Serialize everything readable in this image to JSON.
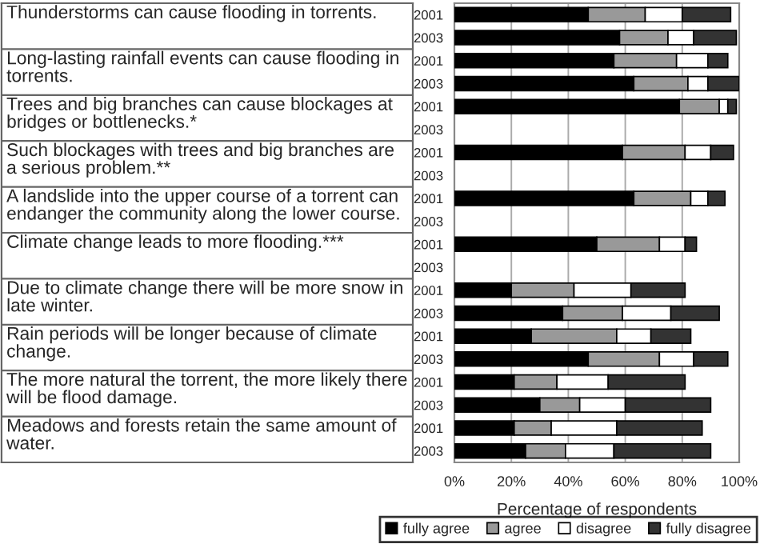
{
  "chart_data": {
    "type": "bar",
    "orientation": "horizontal",
    "stacked": true,
    "xlabel": "Percentage of respondents",
    "categories": [
      "2001",
      "2003",
      "2001",
      "2003",
      "2001",
      "2003",
      "2001",
      "2003",
      "2001",
      "2003",
      "2001",
      "2003",
      "2001",
      "2003",
      "2001",
      "2003",
      "2001",
      "2003",
      "2001",
      "2003"
    ],
    "series": [
      {
        "name": "fully agree",
        "color": "#000000",
        "values": [
          47,
          58,
          56,
          63,
          79,
          null,
          59,
          null,
          63,
          null,
          50,
          null,
          20,
          38,
          27,
          47,
          21,
          30,
          21,
          25
        ]
      },
      {
        "name": "agree",
        "color": "#999999",
        "values": [
          20,
          17,
          22,
          19,
          14,
          null,
          22,
          null,
          20,
          null,
          22,
          null,
          22,
          21,
          30,
          25,
          15,
          14,
          13,
          14
        ]
      },
      {
        "name": "disagree",
        "color": "#ffffff",
        "values": [
          13,
          9,
          11,
          7,
          3,
          null,
          9,
          null,
          6,
          null,
          9,
          null,
          20,
          17,
          12,
          12,
          18,
          16,
          23,
          17
        ]
      },
      {
        "name": "fully disagree",
        "color": "#333333",
        "values": [
          17,
          15,
          7,
          11,
          3,
          null,
          8,
          null,
          6,
          null,
          4,
          null,
          19,
          17,
          14,
          12,
          27,
          30,
          30,
          34
        ]
      }
    ],
    "xlim": [
      0,
      100
    ],
    "xticks": [
      {
        "value": 0,
        "label": "0%"
      },
      {
        "value": 20,
        "label": "20%"
      },
      {
        "value": 40,
        "label": "40%"
      },
      {
        "value": 60,
        "label": "60%"
      },
      {
        "value": 80,
        "label": "80%"
      },
      {
        "value": 100,
        "label": "100%"
      }
    ],
    "grid": "x",
    "legend": "bottom",
    "annotations": [
      "Thunderstorms can cause flooding in torrents.",
      "Long-lasting rainfall events can cause flooding in torrents.",
      "Trees and big branches can cause blockages at bridges or bottlenecks.*",
      "Such blockages with trees and big branches are a serious problem.**",
      "A landslide into the upper course of a torrent can endanger the community along the lower course.",
      "Climate change leads to more flooding.***",
      "Due to climate change there will be more snow in late winter.",
      "Rain periods will be longer because of climate change.",
      "The more natural the torrent, the more likely there will be flood damage.",
      "Meadows and forests retain the same amount of water."
    ]
  }
}
